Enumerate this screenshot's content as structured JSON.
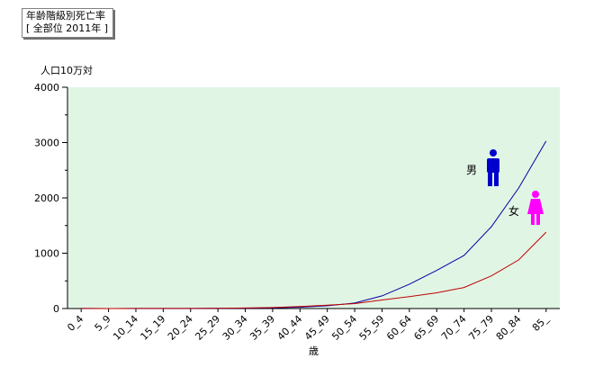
{
  "header": {
    "title_line1": "年齢階級別死亡率",
    "title_line2": "[ 全部位 2011年 ]"
  },
  "chart_data": {
    "type": "line",
    "title": "年齢階級別死亡率",
    "subtitle": "[ 全部位 2011年 ]",
    "xlabel": "歳",
    "ylabel": "人口10万対",
    "ylim": [
      0,
      4000
    ],
    "yticks": [
      "0",
      "1000",
      "2000",
      "3000",
      "4000"
    ],
    "grid": false,
    "background_color": "#e1f5e5",
    "categories": [
      "0_4",
      "5_9",
      "10_14",
      "15_19",
      "20_24",
      "25_29",
      "30_34",
      "35_39",
      "40_44",
      "45_49",
      "50_54",
      "55_59",
      "60_64",
      "65_69",
      "70_74",
      "75_79",
      "80_84",
      "85_"
    ],
    "series": [
      {
        "name": "男",
        "color": "#0000a0",
        "icon": "male-figure-icon",
        "icon_color": "#0000cc",
        "values": [
          1,
          0,
          1,
          1,
          2,
          4,
          7,
          13,
          25,
          50,
          100,
          230,
          440,
          690,
          960,
          1480,
          2180,
          3030
        ]
      },
      {
        "name": "女",
        "color": "#c00000",
        "icon": "female-figure-icon",
        "icon_color": "#ff00ff",
        "values": [
          1,
          0,
          1,
          1,
          2,
          4,
          10,
          18,
          35,
          60,
          90,
          155,
          215,
          285,
          380,
          590,
          880,
          1380
        ]
      }
    ]
  }
}
